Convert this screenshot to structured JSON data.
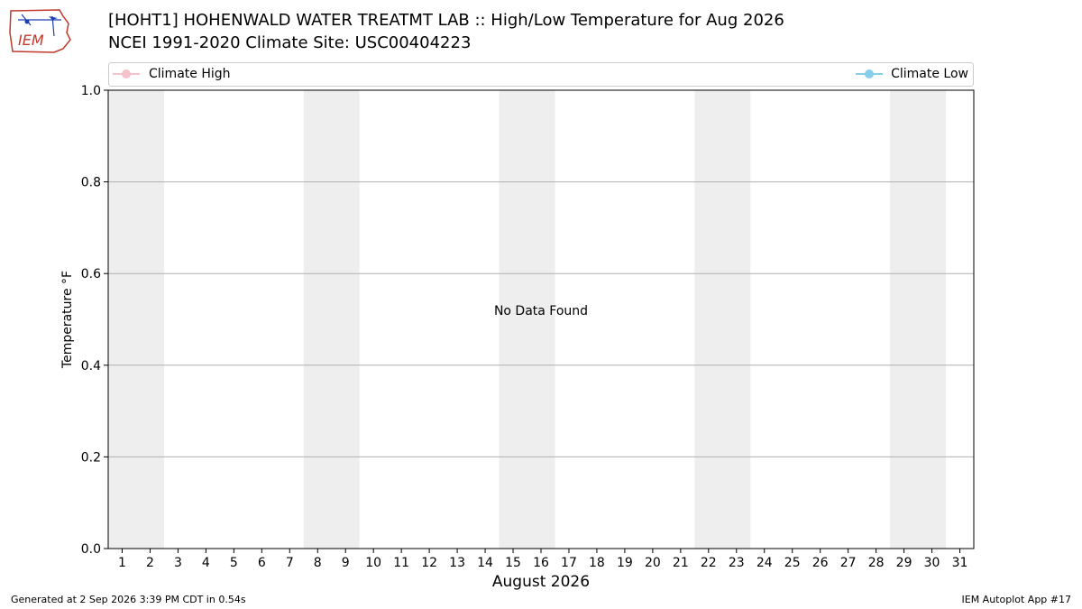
{
  "header": {
    "title_line1": "[HOHT1] HOHENWALD WATER TREATMT LAB :: High/Low Temperature for Aug 2026",
    "title_line2": "NCEI 1991-2020 Climate Site: USC00404223",
    "logo_text": "IEM"
  },
  "footer": {
    "generated": "Generated at 2 Sep 2026 3:39 PM CDT in 0.54s",
    "app": "IEM Autoplot App #17"
  },
  "chart_data": {
    "type": "line",
    "title": "[HOHT1] HOHENWALD WATER TREATMT LAB :: High/Low Temperature for Aug 2026",
    "subtitle": "NCEI 1991-2020 Climate Site: USC00404223",
    "xlabel": "August 2026",
    "ylabel": "Temperature °F",
    "x_ticks": [
      "1",
      "2",
      "3",
      "4",
      "5",
      "6",
      "7",
      "8",
      "9",
      "10",
      "11",
      "12",
      "13",
      "14",
      "15",
      "16",
      "17",
      "18",
      "19",
      "20",
      "21",
      "22",
      "23",
      "24",
      "25",
      "26",
      "27",
      "28",
      "29",
      "30",
      "31"
    ],
    "xlim": [
      0.5,
      31.5
    ],
    "y_ticks": [
      "0.0",
      "0.2",
      "0.4",
      "0.6",
      "0.8",
      "1.0"
    ],
    "ylim": [
      0,
      1
    ],
    "grid": "horizontal",
    "legend_placement": "top",
    "weekend_shading": [
      [
        1,
        2
      ],
      [
        8,
        9
      ],
      [
        15,
        16
      ],
      [
        22,
        23
      ],
      [
        29,
        30
      ]
    ],
    "annotation": "No Data Found",
    "series": [
      {
        "name": "Climate High",
        "color": "#f4c2cb",
        "values": []
      },
      {
        "name": "Climate Low",
        "color": "#87ceeb",
        "values": []
      }
    ],
    "colors": {
      "weekend": "#eeeeee",
      "grid": "#b0b0b0",
      "axis": "#000000"
    }
  }
}
